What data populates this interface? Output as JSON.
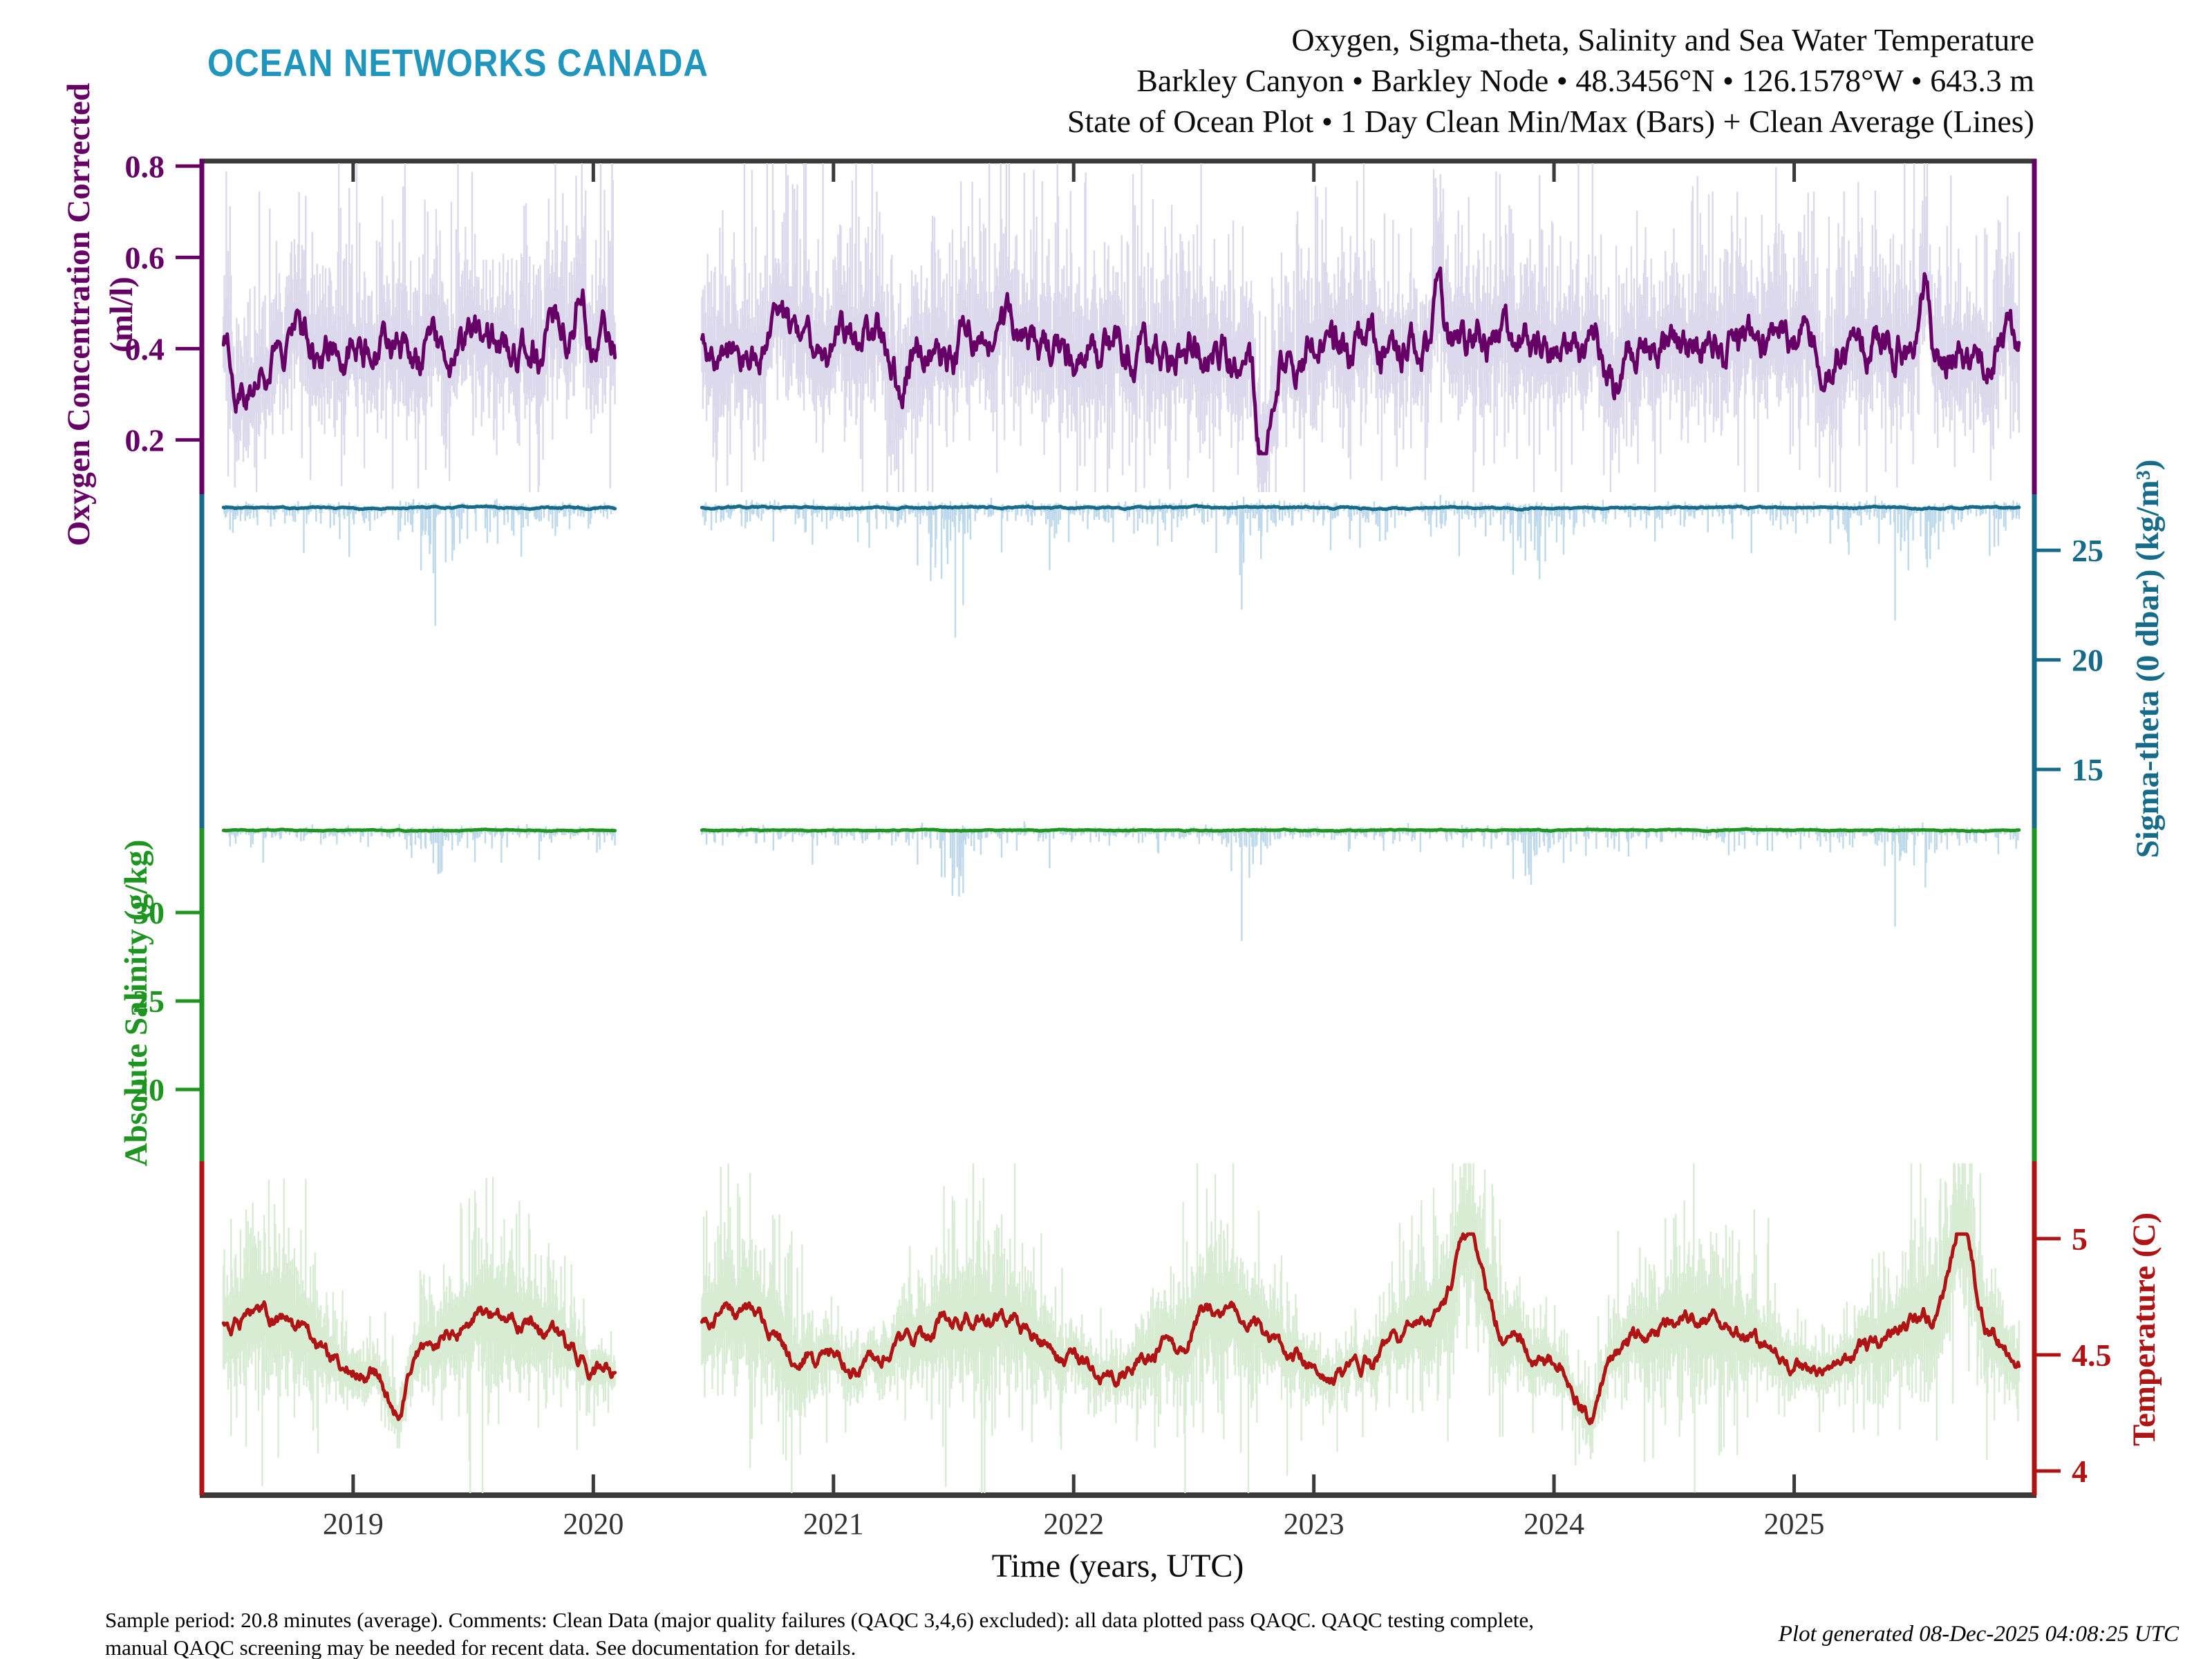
{
  "header": {
    "logo": "OCEAN NETWORKS CANADA",
    "title_line1": "Oxygen, Sigma-theta, Salinity and Sea Water Temperature",
    "title_line2": "Barkley Canyon • Barkley Node • 48.3456°N • 126.1578°W • 643.3 m",
    "title_line3": "State of Ocean Plot • 1 Day Clean Min/Max (Bars) + Clean Average (Lines)"
  },
  "footer": {
    "note_line1": "Sample period: 20.8 minutes (average). Comments: Clean Data (major quality failures (QAQC 3,4,6) excluded): all data plotted pass QAQC. QAQC testing complete,",
    "note_line2": "manual QAQC screening may be needed for recent data. See documentation for details.",
    "generated": "Plot generated 08-Dec-2025 04:08:25 UTC"
  },
  "chart_data": {
    "type": "line",
    "title": "Oxygen, Sigma-theta, Salinity and Sea Water Temperature — State of Ocean Plot, 1 Day Clean Min/Max (Bars) + Clean Average (Lines)",
    "station": "Barkley Canyon, Barkley Node, 48.3456N 126.1578W, 643.3 m",
    "frame_color": "#3A3A3A",
    "x_axis": {
      "label": "Time (years, UTC)",
      "ticks": [
        2019,
        2020,
        2021,
        2022,
        2023,
        2024,
        2025
      ],
      "range": [
        2018.37,
        2026.0
      ]
    },
    "data_start": 2018.46,
    "data_end": 2025.94,
    "gap": [
      2020.09,
      2020.45
    ],
    "series": [
      {
        "id": "oxygen",
        "label": "Oxygen Concentration Corrected",
        "units": "(ml/l)",
        "axis_side": "left",
        "color": "#660066",
        "band_color": "#DCD9EC",
        "ticks": [
          0.2,
          0.4,
          0.6,
          0.8
        ],
        "scale_top": 0.811,
        "scale_bottom": 0.081,
        "mean": 0.4,
        "persist": 0.88,
        "step": 0.028,
        "clip": [
          0.17,
          0.62
        ],
        "band_style": "around",
        "band_up": [
          0.05,
          0.085
        ],
        "band_down": [
          0.05,
          0.06
        ],
        "events": [
          [
            2022.79,
            0.18,
            0.04
          ],
          [
            2019.95,
            0.56,
            0.025
          ],
          [
            2021.28,
            0.3,
            0.03
          ],
          [
            2023.52,
            0.52,
            0.03
          ],
          [
            2024.25,
            0.31,
            0.04
          ],
          [
            2025.55,
            0.52,
            0.025
          ],
          [
            2018.55,
            0.34,
            0.08
          ]
        ]
      },
      {
        "id": "sigma-theta",
        "label": "Sigma-theta (0 dbar)",
        "units": "(kg/m³)",
        "axis_side": "right",
        "color": "#176B8A",
        "band_color": "#BFD9EC",
        "ticks": [
          15,
          20,
          25
        ],
        "scale_top": 27.56,
        "scale_bottom": 12.32,
        "mean": 26.95,
        "persist": 0.93,
        "step": 0.02,
        "clip": [
          26.85,
          27.06
        ],
        "band_style": "spikes",
        "up": [
          0.03,
          0.08
        ],
        "down": [
          0.06,
          0.3
        ],
        "deep_p": 0.015,
        "deep_extra": 1.5,
        "clusters": [
          2019.35,
          2021.5,
          2022.72,
          2023.9,
          2025.5
        ],
        "spikes": [
          [
            2019.3,
            25.7
          ],
          [
            2019.55,
            26.0
          ],
          [
            2020.75,
            25.4
          ],
          [
            2021.35,
            24.3
          ],
          [
            2021.45,
            23.7
          ],
          [
            2021.54,
            22.5
          ],
          [
            2021.7,
            24.9
          ],
          [
            2021.9,
            24.1
          ],
          [
            2022.35,
            25.2
          ],
          [
            2022.7,
            22.3
          ],
          [
            2022.78,
            24.6
          ],
          [
            2023.15,
            25.5
          ],
          [
            2023.83,
            23.9
          ],
          [
            2023.92,
            25.0
          ],
          [
            2024.04,
            24.8
          ],
          [
            2024.45,
            26.0
          ],
          [
            2025.15,
            25.3
          ],
          [
            2025.42,
            21.8
          ],
          [
            2025.55,
            24.6
          ],
          [
            2025.85,
            25.2
          ]
        ]
      },
      {
        "id": "salinity",
        "label": "Absolute Salinity",
        "units": "(g/kg)",
        "axis_side": "left",
        "color": "#1E9520",
        "band_color": "#BFD9EC",
        "ticks": [
          20,
          25,
          30
        ],
        "scale_top": 34.77,
        "scale_bottom": 15.94,
        "mean": 34.65,
        "persist": 0.92,
        "step": 0.015,
        "clip": [
          34.56,
          34.73
        ],
        "band_style": "spikes",
        "up": [
          0.02,
          0.06
        ],
        "down": [
          0.05,
          0.25
        ],
        "deep_p": 0.012,
        "deep_extra": 1.2,
        "clusters": [
          2019.35,
          2021.5,
          2022.72,
          2023.9,
          2025.5
        ],
        "spikes": [
          [
            2019.3,
            33.7
          ],
          [
            2019.55,
            33.9
          ],
          [
            2020.75,
            33.5
          ],
          [
            2021.35,
            32.7
          ],
          [
            2021.45,
            32.0
          ],
          [
            2021.54,
            31.1
          ],
          [
            2021.7,
            33.1
          ],
          [
            2021.9,
            32.5
          ],
          [
            2022.35,
            33.4
          ],
          [
            2022.7,
            28.4
          ],
          [
            2022.78,
            32.7
          ],
          [
            2023.15,
            33.6
          ],
          [
            2023.83,
            31.9
          ],
          [
            2023.92,
            33.2
          ],
          [
            2024.04,
            32.8
          ],
          [
            2024.45,
            34.0
          ],
          [
            2025.15,
            33.4
          ],
          [
            2025.42,
            29.2
          ],
          [
            2025.55,
            32.8
          ],
          [
            2025.85,
            33.3
          ]
        ]
      },
      {
        "id": "temperature",
        "label": "Temperature",
        "units": "(C)",
        "axis_side": "right",
        "color": "#B01313",
        "band_color": "#D7ECD3",
        "ticks": [
          4,
          4.5,
          5
        ],
        "scale_top": 5.333,
        "scale_bottom": 3.896,
        "mean": 4.55,
        "persist": 0.9,
        "step": 0.022,
        "clip": [
          4.18,
          5.02
        ],
        "seasonal": [
          0.12,
          0.35
        ],
        "band_style": "around",
        "band_up": [
          0.08,
          0.09
        ],
        "band_down": [
          0.08,
          0.08
        ],
        "events": [
          [
            2023.65,
            4.92,
            0.07
          ],
          [
            2025.7,
            4.98,
            0.06
          ],
          [
            2019.18,
            4.38,
            0.05
          ],
          [
            2024.15,
            4.35,
            0.06
          ],
          [
            2022.45,
            4.42,
            0.05
          ],
          [
            2020.85,
            4.45,
            0.05
          ]
        ]
      }
    ]
  }
}
